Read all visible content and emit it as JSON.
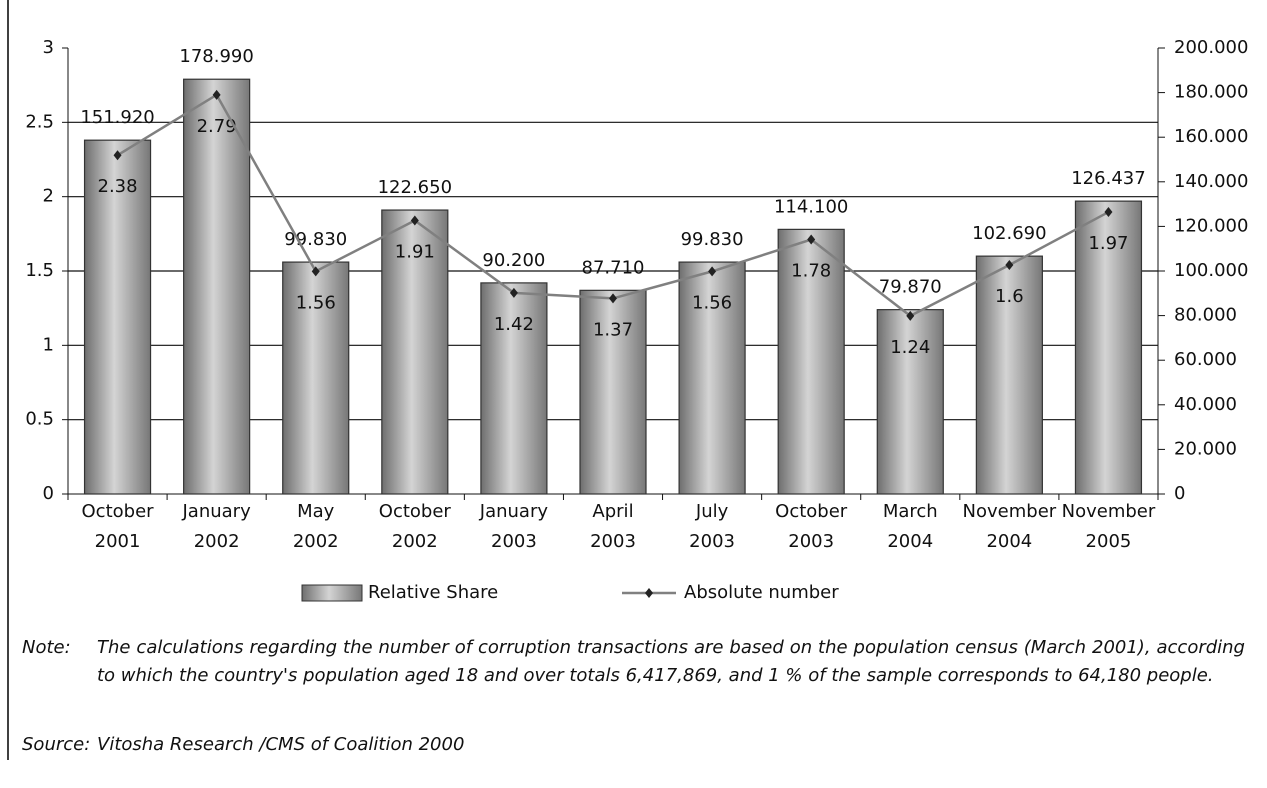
{
  "chart_data": {
    "type": "bar_line",
    "categories": [
      "October\n2001",
      "January\n2002",
      "May\n2002",
      "October\n2002",
      "January\n2003",
      "April\n2003",
      "July\n2003",
      "October\n2003",
      "March\n2004",
      "November\n2004",
      "November\n2005"
    ],
    "series": [
      {
        "name": "Relative Share",
        "color": "#9a9a9a",
        "values": [
          2.38,
          2.79,
          1.56,
          1.91,
          1.42,
          1.37,
          1.56,
          1.78,
          1.24,
          1.6,
          1.97
        ]
      },
      {
        "name": "Absolute number",
        "color": "#808080",
        "axis": "y2",
        "values": [
          151920,
          178990,
          99830,
          122650,
          90200,
          87710,
          99830,
          114100,
          79870,
          102690,
          126437
        ],
        "value_labels": [
          "151.920",
          "178.990",
          "99.830",
          "122.650",
          "90.200",
          "87.710",
          "99.830",
          "114.100",
          "79.870",
          "102.690",
          "126.437"
        ]
      }
    ],
    "ylim": [
      0,
      3
    ],
    "yticks": [
      0,
      0.5,
      1,
      1.5,
      2,
      2.5,
      3
    ],
    "y2lim": [
      0,
      200000
    ],
    "y2ticks": [
      0,
      {
        "value": 20000,
        "label": "20.000"
      },
      {
        "value": 40000,
        "label": "40.000"
      },
      {
        "value": 60000,
        "label": "60.000"
      },
      {
        "value": 80000,
        "label": "80.000"
      },
      {
        "value": 100000,
        "label": "100.000"
      },
      {
        "value": 120000,
        "label": "120.000"
      },
      {
        "value": 140000,
        "label": "140.000"
      },
      {
        "value": 160000,
        "label": "160.000"
      },
      {
        "value": 180000,
        "label": "180.000"
      },
      {
        "value": 200000,
        "label": "200.000"
      }
    ],
    "grid": true,
    "legend": "bottom"
  },
  "note_label": "Note:",
  "note": "The calculations regarding the number of corruption transactions are based on the population census (March 2001), according to which the country's population aged 18 and over totals 6,417,869, and 1 % of the sample corresponds to 64,180 people.",
  "source_label": "Source:",
  "source": "Vitosha Research /CMS of Coalition 2000"
}
